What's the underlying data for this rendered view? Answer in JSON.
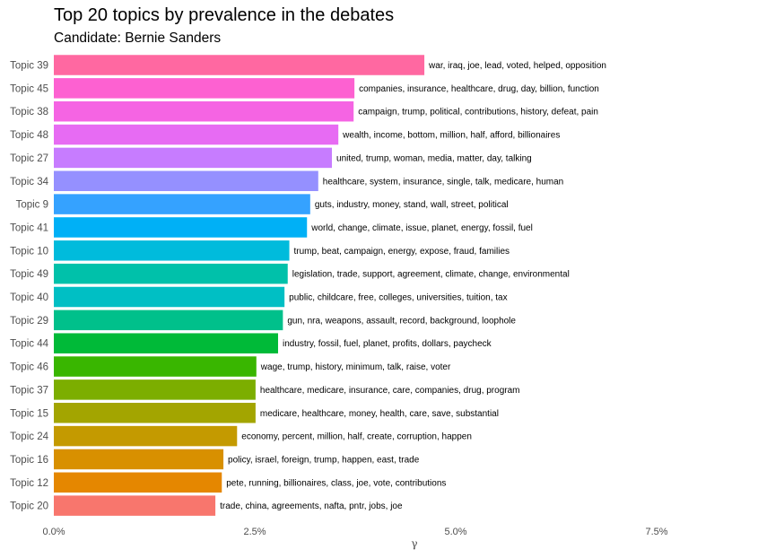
{
  "chart_data": {
    "type": "bar",
    "orientation": "horizontal",
    "title": "Top 20 topics by prevalence in the debates",
    "subtitle": "Candidate: Bernie Sanders",
    "xlabel": "γ",
    "ylabel": "",
    "xlim": [
      0,
      0.09
    ],
    "xticks": [
      0,
      0.025,
      0.05,
      0.075
    ],
    "xtick_labels": [
      "0.0%",
      "2.5%",
      "5.0%",
      "7.5%"
    ],
    "grid": false,
    "legend": "none",
    "categories": [
      "Topic 39",
      "Topic 45",
      "Topic 38",
      "Topic 48",
      "Topic 27",
      "Topic 34",
      "Topic 9",
      "Topic 41",
      "Topic 10",
      "Topic 49",
      "Topic 40",
      "Topic 29",
      "Topic 44",
      "Topic 46",
      "Topic 37",
      "Topic 15",
      "Topic 24",
      "Topic 16",
      "Topic 12",
      "Topic 20"
    ],
    "values": [
      0.0461,
      0.0374,
      0.0373,
      0.0354,
      0.0346,
      0.0329,
      0.0319,
      0.0315,
      0.0293,
      0.0291,
      0.0287,
      0.0285,
      0.0279,
      0.0252,
      0.0251,
      0.0251,
      0.0228,
      0.0211,
      0.0209,
      0.0201
    ],
    "labels": [
      "war, iraq, joe, lead, voted, helped, opposition",
      "companies, insurance, healthcare, drug, day, billion, function",
      "campaign, trump, political, contributions, history, defeat, pain",
      "wealth, income, bottom, million, half, afford, billionaires",
      "united, trump, woman, media, matter, day, talking",
      "healthcare, system, insurance, single, talk, medicare, human",
      "guts, industry, money, stand, wall, street, political",
      "world, change, climate, issue, planet, energy, fossil, fuel",
      "trump, beat, campaign, energy, expose, fraud, families",
      "legislation, trade, support, agreement, climate, change, environmental",
      "public, childcare, free, colleges, universities, tuition, tax",
      "gun, nra, weapons, assault, record, background, loophole",
      "industry, fossil, fuel, planet, profits, dollars, paycheck",
      "wage, trump, history, minimum, talk, raise, voter",
      "healthcare, medicare, insurance, care, companies, drug, program",
      "medicare, healthcare, money, health, care, save, substantial",
      "economy, percent, million, half, create, corruption, happen",
      "policy, israel, foreign, trump, happen, east, trade",
      "pete, running, billionaires, class, joe, vote, contributions",
      "trade, china, agreements, nafta, pntr, jobs, joe"
    ],
    "colors": [
      "#FF68A1",
      "#FD61D1",
      "#F564E3",
      "#E76BF3",
      "#C77CFF",
      "#9590FF",
      "#35A2FF",
      "#00B0F6",
      "#00BBDC",
      "#00C1AA",
      "#00BFC4",
      "#00C08B",
      "#00BA38",
      "#39B600",
      "#7CAE00",
      "#A3A500",
      "#C49A00",
      "#D89000",
      "#E58700",
      "#F8766D"
    ]
  }
}
